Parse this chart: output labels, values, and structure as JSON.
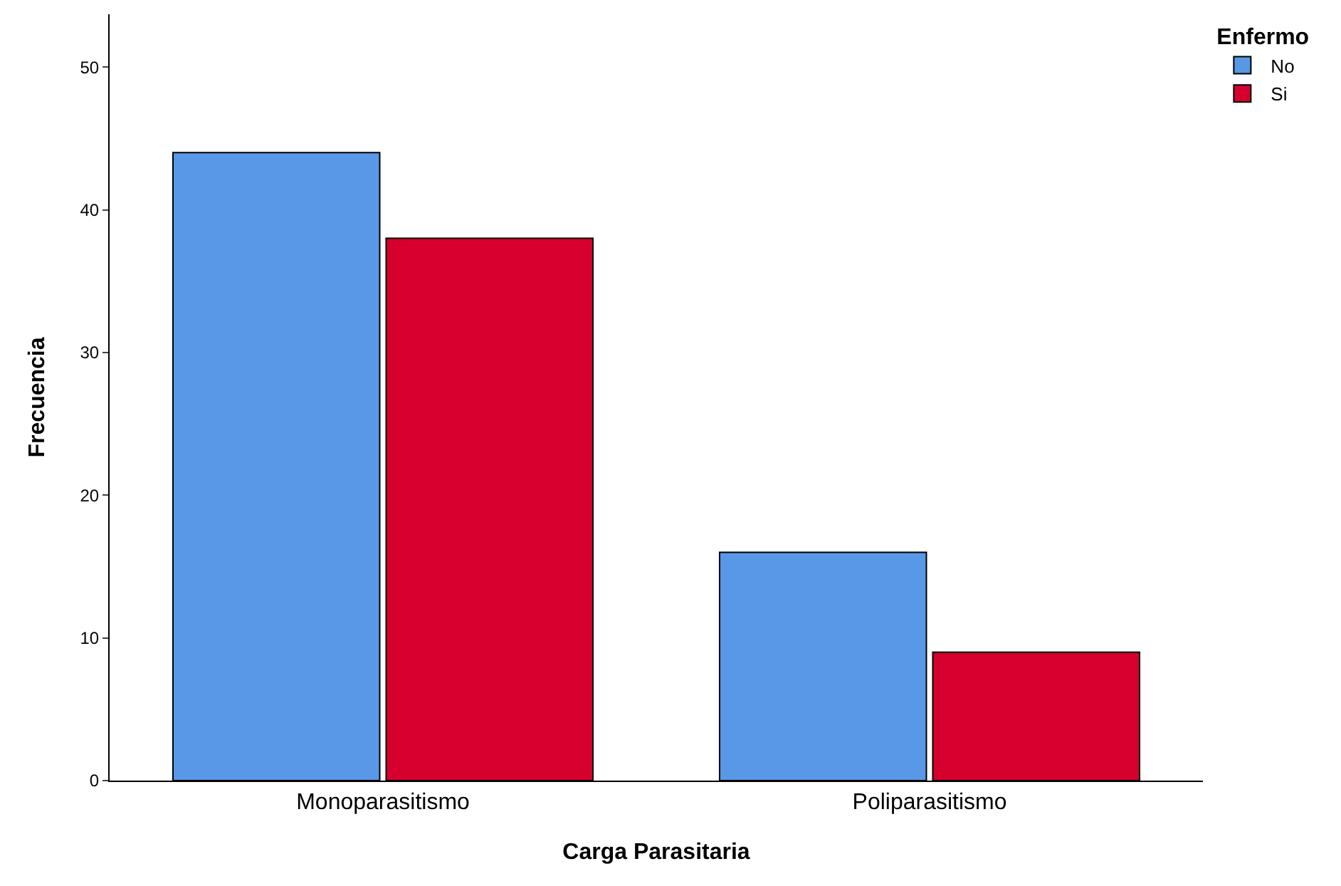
{
  "chart_data": {
    "type": "bar",
    "xlabel": "Carga Parasitaria",
    "ylabel": "Frecuencia",
    "legend_title": "Enfermo",
    "categories": [
      "Monoparasitismo",
      "Poliparasitismo"
    ],
    "series": [
      {
        "name": "No",
        "color": "#5898e6",
        "values": [
          44,
          16
        ]
      },
      {
        "name": "Si",
        "color": "#d6002e",
        "values": [
          38,
          9
        ]
      }
    ],
    "ylim": [
      0,
      53.7
    ],
    "yticks": [
      0,
      10,
      20,
      30,
      40,
      50
    ],
    "grid": false,
    "legend": "top right"
  }
}
